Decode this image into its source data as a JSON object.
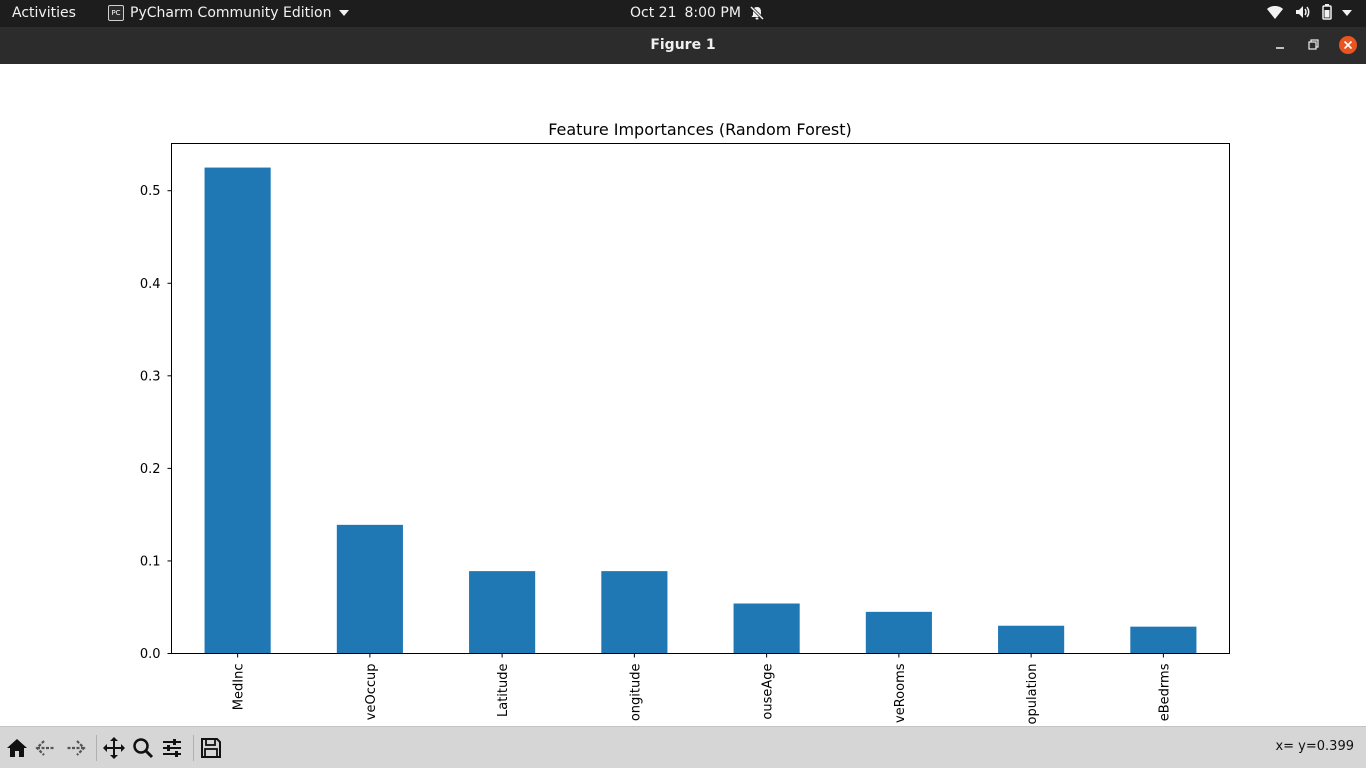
{
  "topbar": {
    "activities_label": "Activities",
    "app_name": "PyCharm Community Edition",
    "app_icon_text": "PC",
    "date": "Oct 21",
    "time": "8:00 PM"
  },
  "window": {
    "title": "Figure 1"
  },
  "toolbar": {
    "coords_text": "x= y=0.399"
  },
  "icons": {
    "home": "home-icon",
    "back": "back-arrow-icon",
    "forward": "forward-arrow-icon",
    "pan": "move-icon",
    "zoom": "magnifier-icon",
    "configure": "sliders-icon",
    "save": "floppy-disk-icon"
  },
  "colors": {
    "bar": "#1f77b4",
    "accent_close": "#e95420"
  },
  "chart_data": {
    "type": "bar",
    "title": "Feature Importances (Random Forest)",
    "xlabel": "",
    "ylabel": "",
    "categories": [
      "MedInc",
      "AveOccup",
      "Latitude",
      "Longitude",
      "HouseAge",
      "AveRooms",
      "Population",
      "AveBedrms"
    ],
    "tick_text": [
      "MedInc",
      "veOccup",
      "Latitude",
      "ongitude",
      "ouseAge",
      "veRooms",
      "opulation",
      "eBedrms"
    ],
    "values": [
      0.525,
      0.139,
      0.089,
      0.089,
      0.054,
      0.045,
      0.03,
      0.029
    ],
    "yticks": [
      "0.0",
      "0.1",
      "0.2",
      "0.3",
      "0.4",
      "0.5"
    ],
    "ytick_values": [
      0.0,
      0.1,
      0.2,
      0.3,
      0.4,
      0.5
    ],
    "ylim": [
      0,
      0.551
    ],
    "grid": false,
    "legend": "none"
  }
}
